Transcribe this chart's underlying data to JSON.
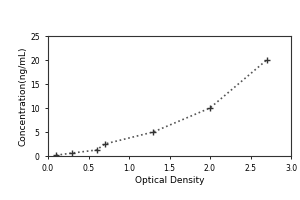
{
  "x": [
    0.1,
    0.3,
    0.6,
    0.7,
    1.3,
    2.0,
    2.7
  ],
  "y": [
    0.156,
    0.625,
    1.25,
    2.5,
    5.0,
    10.0,
    20.0
  ],
  "xlabel": "Optical Density",
  "ylabel": "Concentration(ng/mL)",
  "xlim": [
    0,
    3
  ],
  "ylim": [
    0,
    25
  ],
  "xticks": [
    0,
    0.5,
    1,
    1.5,
    2,
    2.5,
    3
  ],
  "yticks": [
    0,
    5,
    10,
    15,
    20,
    25
  ],
  "line_color": "#555555",
  "marker": "+",
  "marker_color": "#333333",
  "marker_size": 5,
  "line_style": ":",
  "line_width": 1.2,
  "bg_color": "#ffffff",
  "plot_bg_color": "#ffffff",
  "tick_fontsize": 5.5,
  "label_fontsize": 6.5,
  "box_color": "#333333"
}
